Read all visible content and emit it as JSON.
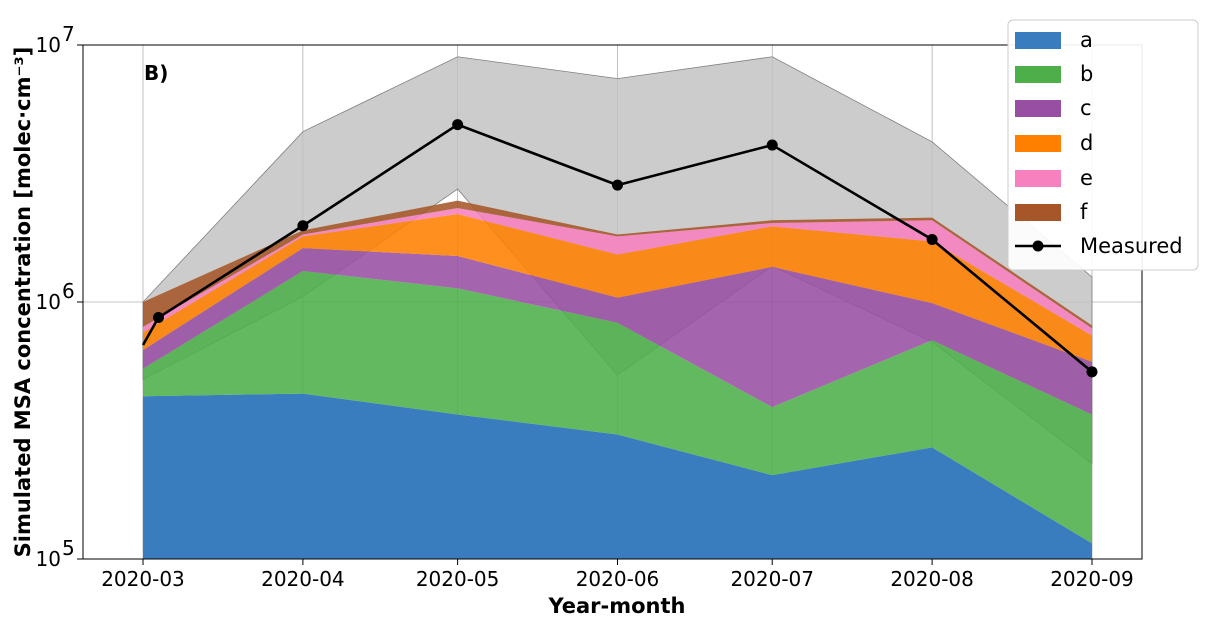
{
  "chart_data": {
    "type": "area",
    "panel_label": "B)",
    "xlabel": "Year-month",
    "ylabel": "Simulated MSA concentration [molec·cm⁻³]",
    "y_scale": "log",
    "ylim": [
      100000,
      10000000
    ],
    "y_ticks": [
      {
        "value": 100000,
        "base": "10",
        "exp": "5"
      },
      {
        "value": 1000000,
        "base": "10",
        "exp": "6"
      },
      {
        "value": 10000000,
        "base": "10",
        "exp": "7"
      }
    ],
    "x_range": [
      "2020-03-01",
      "2020-09-01"
    ],
    "categories": [
      "2020-03",
      "2020-04",
      "2020-05",
      "2020-06",
      "2020-07",
      "2020-08",
      "2020-09"
    ],
    "grid": true,
    "legend_position": "top-right",
    "series": [
      {
        "name": "a",
        "color": "#3a7dbf",
        "values": [
          430000,
          440000,
          365000,
          305000,
          212000,
          272000,
          115000
        ]
      },
      {
        "name": "b",
        "color": "#4daf4a",
        "values": [
          550000,
          1320000,
          1130000,
          830000,
          390000,
          710000,
          365000
        ]
      },
      {
        "name": "c",
        "color": "#984ea3",
        "values": [
          650000,
          1620000,
          1510000,
          1040000,
          1370000,
          990000,
          585000
        ]
      },
      {
        "name": "d",
        "color": "#ff7f00",
        "values": [
          760000,
          1800000,
          2200000,
          1530000,
          1970000,
          1720000,
          740000
        ]
      },
      {
        "name": "e",
        "color": "#f781bf",
        "values": [
          800000,
          1830000,
          2320000,
          1800000,
          2030000,
          2080000,
          790000
        ]
      },
      {
        "name": "f",
        "color": "#a65628",
        "values": [
          1000000,
          1900000,
          2480000,
          1830000,
          2080000,
          2130000,
          810000
        ]
      }
    ],
    "measured": {
      "name": "Measured",
      "color": "#000000",
      "x": [
        "2020-03-01",
        "2020-03-04",
        "2020-04-01",
        "2020-05-01",
        "2020-06-01",
        "2020-07-01",
        "2020-08-01",
        "2020-09-01"
      ],
      "values": [
        680000,
        870000,
        1980000,
        4900000,
        2850000,
        4080000,
        1750000,
        535000
      ],
      "markers": [
        false,
        true,
        true,
        true,
        true,
        true,
        true,
        true
      ]
    },
    "shaded_range": {
      "color": "#bfbfbf",
      "x": [
        "2020-03-01",
        "2020-04-01",
        "2020-05-01",
        "2020-06-01",
        "2020-07-01",
        "2020-08-01",
        "2020-09-01"
      ],
      "upper": [
        1000000,
        4600000,
        9000000,
        7400000,
        9000000,
        4200000,
        1250000
      ],
      "lower": [
        500000,
        1050000,
        2750000,
        520000,
        1380000,
        700000,
        235000
      ]
    }
  }
}
